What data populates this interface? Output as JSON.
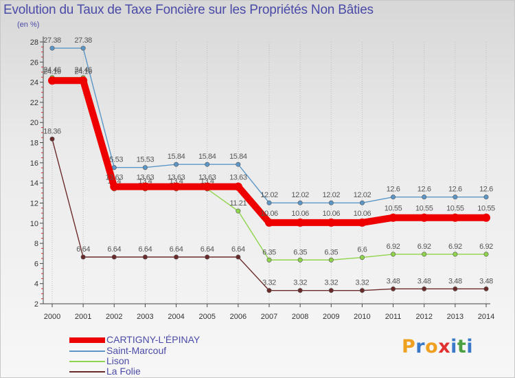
{
  "chart_data": {
    "type": "line",
    "title": "Evolution du Taux de Taxe Foncière sur les Propriétés Non Bâties",
    "ylabel": "(en %)",
    "xlabel": "",
    "categories": [
      "2000",
      "2001",
      "2002",
      "2003",
      "2004",
      "2005",
      "2006",
      "2007",
      "2008",
      "2009",
      "2010",
      "2011",
      "2012",
      "2013",
      "2014"
    ],
    "ylim": [
      2,
      28
    ],
    "yticks": [
      2,
      4,
      6,
      8,
      10,
      12,
      14,
      16,
      18,
      20,
      22,
      24,
      26,
      28
    ],
    "grid": false,
    "series": [
      {
        "name": "Saint-Marcouf",
        "color": "#5b96c6",
        "values": [
          27.38,
          27.38,
          15.53,
          15.53,
          15.84,
          15.84,
          15.84,
          12.02,
          12.02,
          12.02,
          12.02,
          12.6,
          12.6,
          12.6,
          12.6
        ],
        "labels": [
          "27.38",
          "27.38",
          "15.53",
          "15.53",
          "15.84",
          "15.84",
          "15.84",
          "12.02",
          "12.02",
          "12.02",
          "12.02",
          "12.6",
          "12.6",
          "12.6",
          "12.6"
        ]
      },
      {
        "name": "Lison",
        "color": "#8fd44a",
        "values": [
          24.46,
          24.46,
          13.4,
          13.4,
          13.4,
          13.4,
          11.21,
          6.35,
          6.35,
          6.35,
          6.6,
          6.92,
          6.92,
          6.92,
          6.92
        ],
        "labels": [
          "24.46",
          "24.46",
          "13.4",
          "13.4",
          "13.4",
          "13.4",
          "11.21",
          "6.35",
          "6.35",
          "6.35",
          "6.6",
          "6.92",
          "6.92",
          "6.92",
          "6.92"
        ]
      },
      {
        "name": "La Folie",
        "color": "#6b2a2a",
        "values": [
          18.36,
          6.64,
          6.64,
          6.64,
          6.64,
          6.64,
          6.64,
          3.32,
          3.32,
          3.32,
          3.32,
          3.48,
          3.48,
          3.48,
          3.48
        ],
        "labels": [
          "18.36",
          "6.64",
          "6.64",
          "6.64",
          "6.64",
          "6.64",
          "6.64",
          "3.32",
          "3.32",
          "3.32",
          "3.32",
          "3.48",
          "3.48",
          "3.48",
          "3.48"
        ]
      },
      {
        "name": "CARTIGNY-L'ÉPINAY",
        "color": "#ee0000",
        "values": [
          24.16,
          24.16,
          13.63,
          13.63,
          13.63,
          13.63,
          13.63,
          10.06,
          10.06,
          10.06,
          10.06,
          10.55,
          10.55,
          10.55,
          10.55
        ],
        "labels": [
          "24.16",
          "24.16",
          "13.63",
          "13.63",
          "13.63",
          "13.63",
          "13.63",
          "10.06",
          "10.06",
          "10.06",
          "10.06",
          "10.55",
          "10.55",
          "10.55",
          "10.55"
        ]
      }
    ],
    "legend": [
      "CARTIGNY-L'ÉPINAY",
      "Saint-Marcouf",
      "Lison",
      "La Folie"
    ],
    "legend_position": "bottom-left"
  },
  "logo": {
    "letters": [
      "P",
      "r",
      "o",
      "x",
      "i",
      "t",
      "i"
    ],
    "colors": [
      "#f0a020",
      "#3a78c8",
      "#f0a020",
      "#e03030",
      "#3a78c8",
      "#4aa040",
      "#3a78c8"
    ]
  }
}
